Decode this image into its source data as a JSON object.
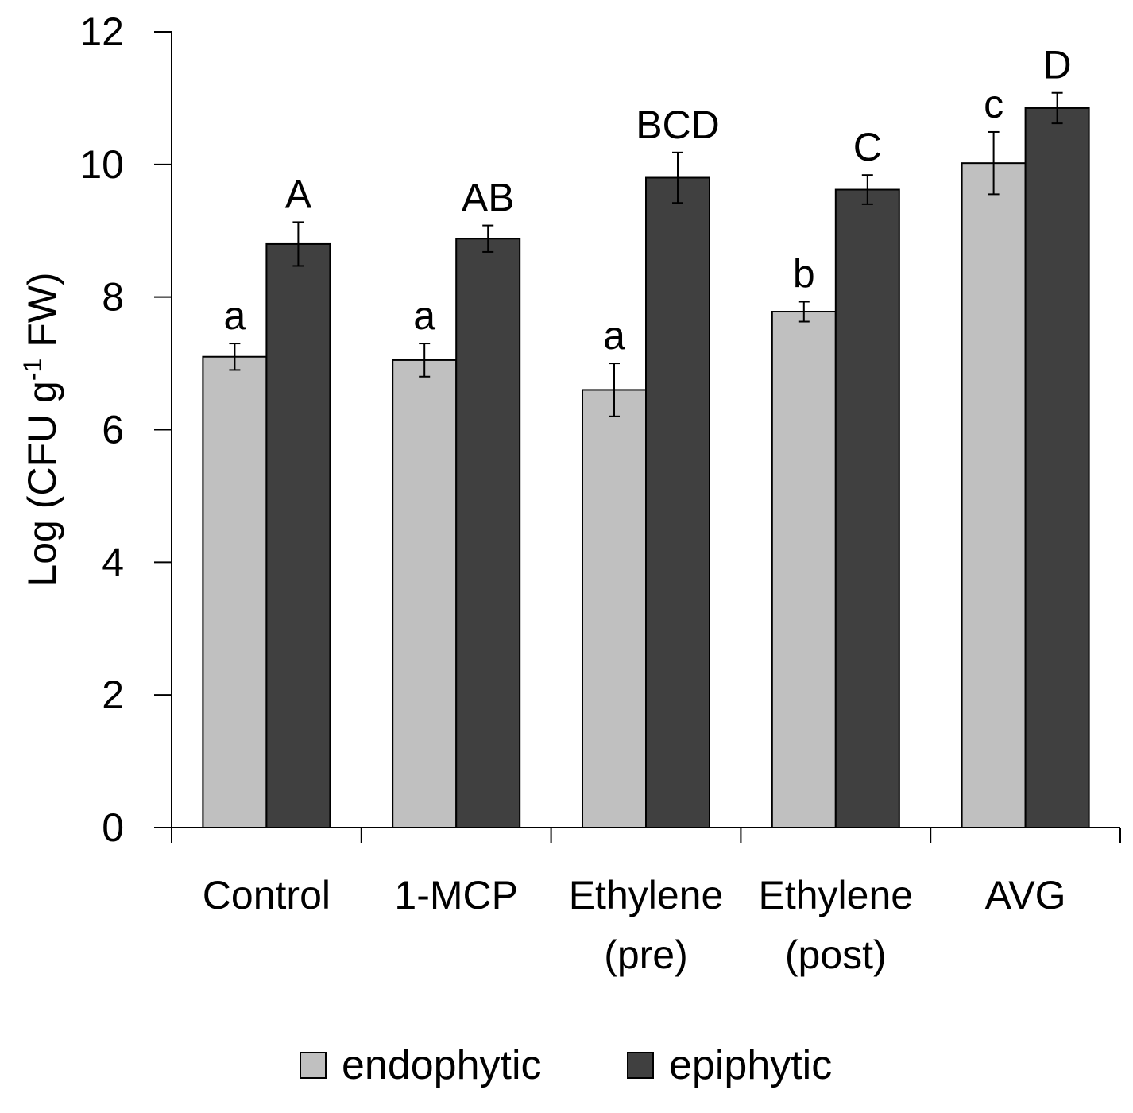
{
  "chart_data": {
    "type": "bar",
    "title": "",
    "xlabel": "",
    "ylabel": "Log (CFU g-1 FW)",
    "ylabel_parts": {
      "prefix": "Log (CFU g",
      "superscript": "-1",
      "suffix": " FW)"
    },
    "ylim": [
      0,
      12
    ],
    "yticks": [
      0,
      2,
      4,
      6,
      8,
      10,
      12
    ],
    "grid": false,
    "legend_position": "bottom",
    "categories": [
      {
        "lines": [
          "Control"
        ]
      },
      {
        "lines": [
          "1-MCP"
        ]
      },
      {
        "lines": [
          "Ethylene",
          "(pre)"
        ]
      },
      {
        "lines": [
          "Ethylene",
          "(post)"
        ]
      },
      {
        "lines": [
          "AVG"
        ]
      }
    ],
    "series": [
      {
        "name": "endophytic",
        "color": "#c0c0c0",
        "values": [
          7.1,
          7.05,
          6.6,
          7.78,
          10.02
        ],
        "errors": [
          0.2,
          0.25,
          0.4,
          0.15,
          0.47
        ],
        "significance": [
          "a",
          "a",
          "a",
          "b",
          "c"
        ]
      },
      {
        "name": "epiphytic",
        "color": "#404040",
        "values": [
          8.8,
          8.88,
          9.8,
          9.62,
          10.85
        ],
        "errors": [
          0.33,
          0.2,
          0.38,
          0.22,
          0.23
        ],
        "significance": [
          "A",
          "AB",
          "BCD",
          "C",
          "D"
        ]
      }
    ]
  }
}
